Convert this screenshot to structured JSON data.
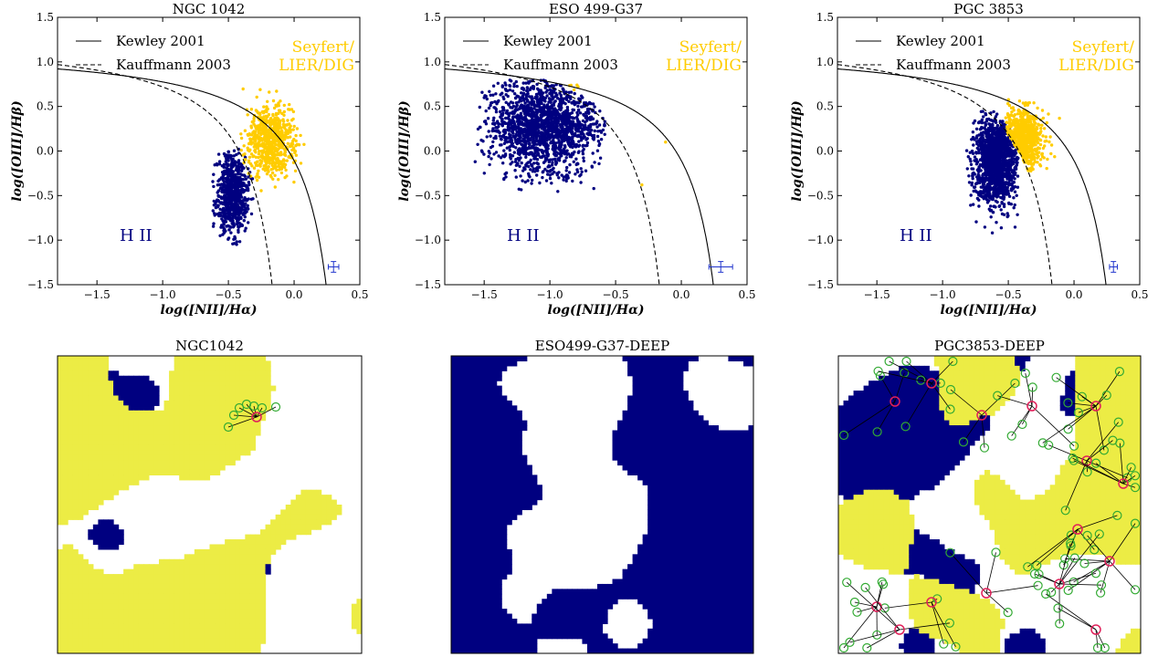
{
  "chart_data": [
    {
      "type": "scatter",
      "title": "NGC 1042",
      "xlabel": "log([NII]/Hα)",
      "ylabel": "log([OIII]/Hβ)",
      "xlim": [
        -1.8,
        0.5
      ],
      "ylim": [
        -1.5,
        1.5
      ],
      "xticks": [
        "−1.5",
        "−1.0",
        "−0.5",
        "0.0",
        "0.5"
      ],
      "yticks": [
        "1.5",
        "1.0",
        "0.5",
        "0.0",
        "−0.5",
        "−1.0",
        "−1.5"
      ],
      "legend": [
        {
          "label": "Kewley 2001",
          "style": "solid"
        },
        {
          "label": "Kauffmann 2003",
          "style": "dashed"
        }
      ],
      "legend_position": "top-left",
      "region_labels": {
        "agn": "Seyfert/\nLIER/DIG",
        "hii": "H II"
      },
      "colors": {
        "hii": "#000080",
        "agn": "#ffcc00"
      },
      "series": [
        {
          "region": "hii",
          "center": [
            -0.47,
            -0.48
          ],
          "spread": [
            0.06,
            0.22
          ],
          "count": 700,
          "range": {
            "x": [
              -0.62,
              -0.3
            ],
            "y": [
              -1.05,
              0.05
            ]
          }
        },
        {
          "region": "agn",
          "center": [
            -0.18,
            0.12
          ],
          "spread": [
            0.09,
            0.2
          ],
          "count": 700,
          "range": {
            "x": [
              -0.42,
              0.22
            ],
            "y": [
              -0.45,
              0.8
            ]
          }
        }
      ],
      "error_bar": {
        "x": 0.3,
        "y": -1.3,
        "xerr": 0.04,
        "yerr": 0.06
      }
    },
    {
      "type": "scatter",
      "title": "ESO 499-G37",
      "xlabel": "log([NII]/Hα)",
      "ylabel": "log([OIII]/Hβ)",
      "xlim": [
        -1.8,
        0.5
      ],
      "ylim": [
        -1.5,
        1.5
      ],
      "xticks": [
        "−1.5",
        "−1.0",
        "−0.5",
        "0.0",
        "0.5"
      ],
      "yticks": [
        "1.5",
        "1.0",
        "0.5",
        "0.0",
        "−0.5",
        "−1.0",
        "−1.5"
      ],
      "legend": [
        {
          "label": "Kewley 2001",
          "style": "solid"
        },
        {
          "label": "Kauffmann 2003",
          "style": "dashed"
        }
      ],
      "legend_position": "top-left",
      "region_labels": {
        "agn": "Seyfert/\nLIER/DIG",
        "hii": "H II"
      },
      "colors": {
        "hii": "#000080",
        "agn": "#ffcc00"
      },
      "series": [
        {
          "region": "hii",
          "center": [
            -1.05,
            0.28
          ],
          "spread": [
            0.2,
            0.26
          ],
          "count": 1800,
          "range": {
            "x": [
              -1.6,
              -0.58
            ],
            "y": [
              -0.85,
              0.8
            ]
          }
        },
        {
          "region": "agn",
          "center": [
            -0.82,
            0.72
          ],
          "spread": [
            0.03,
            0.02
          ],
          "count": 6,
          "range": {
            "x": [
              -0.9,
              -0.75
            ],
            "y": [
              0.68,
              0.76
            ]
          }
        }
      ],
      "extra_points": [
        [
          -0.12,
          0.1
        ],
        [
          -0.3,
          -0.38
        ]
      ],
      "error_bar": {
        "x": 0.3,
        "y": -1.3,
        "xerr": 0.09,
        "yerr": 0.06
      }
    },
    {
      "type": "scatter",
      "title": "PGC 3853",
      "xlabel": "log([NII]/Hα)",
      "ylabel": "log([OIII]/Hβ)",
      "xlim": [
        -1.8,
        0.5
      ],
      "ylim": [
        -1.5,
        1.5
      ],
      "xticks": [
        "−1.5",
        "−1.0",
        "−0.5",
        "0.0",
        "0.5"
      ],
      "yticks": [
        "1.5",
        "1.0",
        "0.5",
        "0.0",
        "−0.5",
        "−1.0",
        "−1.5"
      ],
      "legend": [
        {
          "label": "Kewley 2001",
          "style": "solid"
        },
        {
          "label": "Kauffmann 2003",
          "style": "dashed"
        }
      ],
      "legend_position": "top-left",
      "region_labels": {
        "agn": "Seyfert/\nLIER/DIG",
        "hii": "H II"
      },
      "colors": {
        "hii": "#000080",
        "agn": "#ffcc00"
      },
      "series": [
        {
          "region": "hii",
          "center": [
            -0.6,
            -0.12
          ],
          "spread": [
            0.08,
            0.24
          ],
          "count": 1500,
          "range": {
            "x": [
              -0.82,
              -0.42
            ],
            "y": [
              -1.05,
              0.45
            ]
          }
        },
        {
          "region": "agn",
          "center": [
            -0.4,
            0.12
          ],
          "spread": [
            0.08,
            0.16
          ],
          "count": 900,
          "range": {
            "x": [
              -0.52,
              -0.08
            ],
            "y": [
              -0.3,
              0.62
            ]
          }
        }
      ],
      "error_bar": {
        "x": 0.3,
        "y": -1.3,
        "xerr": 0.03,
        "yerr": 0.06
      }
    },
    {
      "type": "heatmap",
      "title": "NGC1042",
      "colors": {
        "background": "#ffffff",
        "agn": "#ecec45",
        "hii": "#000080"
      },
      "fractions": {
        "agn": 0.52,
        "hii": 0.08
      }
    },
    {
      "type": "heatmap",
      "title": "ESO499-G37-DEEP",
      "colors": {
        "background": "#ffffff",
        "agn": "#ecec45",
        "hii": "#000080"
      },
      "fractions": {
        "agn": 0.01,
        "hii": 0.62
      }
    },
    {
      "type": "heatmap",
      "title": "PGC3853-DEEP",
      "colors": {
        "background": "#ffffff",
        "agn": "#ecec45",
        "hii": "#000080"
      },
      "fractions": {
        "agn": 0.4,
        "hii": 0.3
      }
    }
  ]
}
